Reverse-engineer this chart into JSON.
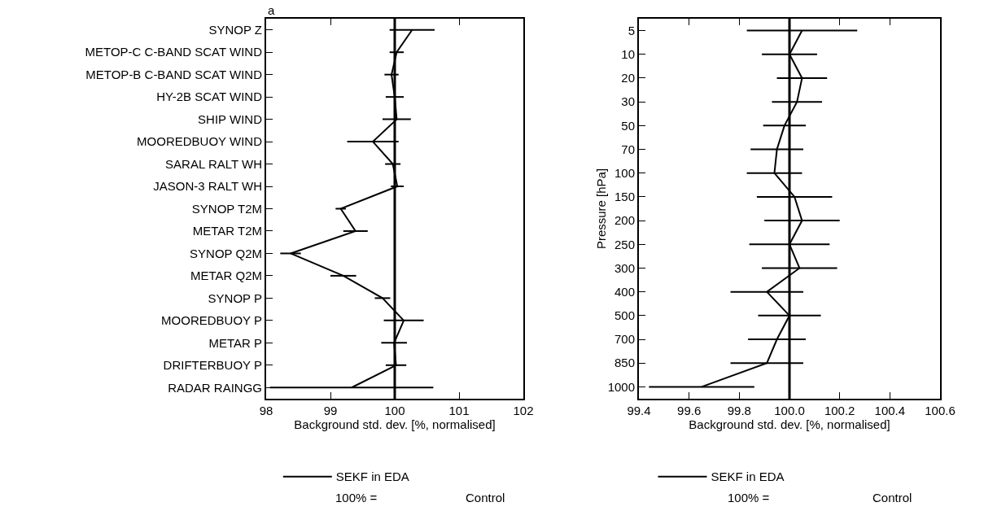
{
  "chart_data": [
    {
      "type": "line",
      "orientation": "horizontal",
      "annotations": [
        "a",
        "100% =",
        "Control"
      ],
      "xlabel": "Background std. dev. [%, normalised]",
      "categories": [
        "SYNOP Z",
        "METOP-C C-BAND SCAT WIND",
        "METOP-B C-BAND SCAT WIND",
        "HY-2B SCAT WIND",
        "SHIP WIND",
        "MOOREDBUOY WIND",
        "SARAL RALT WH",
        "JASON-3 RALT WH",
        "SYNOP T2M",
        "METAR T2M",
        "SYNOP Q2M",
        "METAR Q2M",
        "SYNOP P",
        "MOOREDBUOY P",
        "METAR P",
        "DRIFTERBUOY P",
        "RADAR RAINGG"
      ],
      "series": [
        {
          "name": "SEKF in EDA",
          "color": "#000000",
          "values": [
            100.27,
            100.03,
            99.95,
            100.0,
            100.03,
            99.66,
            99.97,
            100.04,
            99.16,
            99.39,
            98.38,
            99.2,
            99.81,
            100.14,
            99.99,
            100.02,
            99.33
          ],
          "errors": [
            0.35,
            0.11,
            0.11,
            0.14,
            0.22,
            0.4,
            0.12,
            0.1,
            0.08,
            0.19,
            0.16,
            0.2,
            0.12,
            0.31,
            0.2,
            0.16,
            1.27
          ]
        }
      ],
      "xlim": [
        98,
        102
      ],
      "xticks": [
        98,
        99,
        100,
        101,
        102
      ],
      "ref_lines": [
        {
          "axis": "x",
          "value": 100,
          "color": "#000000"
        }
      ],
      "marker": "none",
      "line_style": "solid",
      "legend": "bottom",
      "grid": false
    },
    {
      "type": "line",
      "orientation": "horizontal",
      "annotations": [
        "100% =",
        "Control"
      ],
      "xlabel": "Background std. dev. [%, normalised]",
      "ylabel": "Pressure [hPa]",
      "categories": [
        "5",
        "10",
        "20",
        "30",
        "50",
        "70",
        "100",
        "150",
        "200",
        "250",
        "300",
        "400",
        "500",
        "700",
        "850",
        "1000"
      ],
      "series": [
        {
          "name": "SEKF in EDA",
          "color": "#000000",
          "values": [
            100.05,
            100.0,
            100.05,
            100.03,
            99.98,
            99.95,
            99.94,
            100.02,
            100.05,
            100.0,
            100.04,
            99.91,
            100.0,
            99.95,
            99.91,
            99.65
          ],
          "errors": [
            0.22,
            0.11,
            0.1,
            0.1,
            0.085,
            0.105,
            0.11,
            0.15,
            0.15,
            0.16,
            0.15,
            0.145,
            0.125,
            0.115,
            0.145,
            0.21
          ]
        }
      ],
      "xlim": [
        99.4,
        100.6
      ],
      "xticks": [
        99.4,
        99.6,
        99.8,
        {
          "value": 100,
          "label": "100.0"
        },
        100.2,
        100.4,
        100.6
      ],
      "ref_lines": [
        {
          "axis": "x",
          "value": 100,
          "color": "#000000"
        }
      ],
      "marker": "none",
      "line_style": "solid",
      "legend": "bottom",
      "grid": false
    }
  ]
}
